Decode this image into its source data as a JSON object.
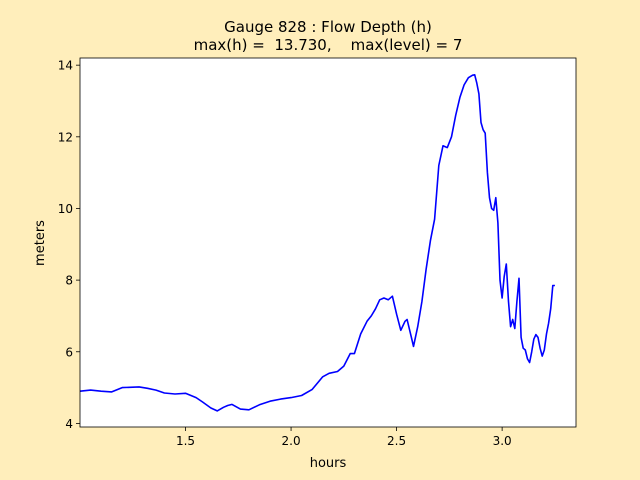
{
  "figure": {
    "background": "#ffeebb",
    "axes_background": "#ffffff",
    "line_color": "#0000ff"
  },
  "chart_data": {
    "type": "line",
    "title_line1": "Gauge 828 : Flow Depth (h)",
    "title_line2": "max(h) =  13.730,    max(level) = 7",
    "xlabel": "hours",
    "ylabel": "meters",
    "xlim": [
      1.0,
      3.35
    ],
    "ylim": [
      3.9,
      14.2
    ],
    "xticks": [
      1.5,
      2.0,
      2.5,
      3.0
    ],
    "xtick_labels": [
      "1.5",
      "2.0",
      "2.5",
      "3.0"
    ],
    "yticks": [
      4,
      6,
      8,
      10,
      12,
      14
    ],
    "ytick_labels": [
      "4",
      "6",
      "8",
      "10",
      "12",
      "14"
    ],
    "grid": false,
    "series": [
      {
        "color": "#0000ff",
        "x": [
          1.0,
          1.05,
          1.1,
          1.15,
          1.2,
          1.25,
          1.28,
          1.32,
          1.36,
          1.4,
          1.45,
          1.5,
          1.55,
          1.58,
          1.62,
          1.65,
          1.68,
          1.7,
          1.72,
          1.76,
          1.8,
          1.85,
          1.9,
          1.95,
          2.0,
          2.05,
          2.1,
          2.15,
          2.18,
          2.22,
          2.25,
          2.28,
          2.3,
          2.33,
          2.36,
          2.38,
          2.4,
          2.42,
          2.44,
          2.46,
          2.48,
          2.5,
          2.52,
          2.54,
          2.55,
          2.57,
          2.58,
          2.6,
          2.62,
          2.64,
          2.66,
          2.68,
          2.7,
          2.72,
          2.74,
          2.76,
          2.78,
          2.8,
          2.82,
          2.84,
          2.86,
          2.87,
          2.88,
          2.89,
          2.9,
          2.91,
          2.92,
          2.93,
          2.94,
          2.95,
          2.96,
          2.97,
          2.98,
          2.99,
          3.0,
          3.01,
          3.02,
          3.03,
          3.04,
          3.05,
          3.06,
          3.07,
          3.08,
          3.09,
          3.1,
          3.11,
          3.12,
          3.13,
          3.14,
          3.15,
          3.16,
          3.17,
          3.18,
          3.19,
          3.2,
          3.21,
          3.22,
          3.23,
          3.24,
          3.25
        ],
        "y": [
          4.9,
          4.93,
          4.9,
          4.88,
          5.0,
          5.01,
          5.02,
          4.98,
          4.93,
          4.85,
          4.82,
          4.84,
          4.72,
          4.6,
          4.43,
          4.35,
          4.45,
          4.5,
          4.53,
          4.4,
          4.38,
          4.52,
          4.62,
          4.68,
          4.72,
          4.78,
          4.95,
          5.3,
          5.4,
          5.45,
          5.6,
          5.95,
          5.95,
          6.5,
          6.85,
          7.0,
          7.2,
          7.45,
          7.5,
          7.45,
          7.55,
          7.05,
          6.6,
          6.85,
          6.9,
          6.4,
          6.15,
          6.7,
          7.4,
          8.3,
          9.1,
          9.7,
          11.2,
          11.75,
          11.7,
          12.0,
          12.6,
          13.1,
          13.45,
          13.65,
          13.72,
          13.73,
          13.5,
          13.2,
          12.4,
          12.2,
          12.1,
          11.0,
          10.3,
          10.0,
          9.95,
          10.3,
          9.6,
          8.0,
          7.5,
          8.1,
          8.45,
          7.4,
          6.7,
          6.9,
          6.65,
          7.4,
          8.05,
          6.4,
          6.1,
          6.05,
          5.8,
          5.7,
          6.0,
          6.35,
          6.48,
          6.4,
          6.1,
          5.88,
          6.05,
          6.5,
          6.8,
          7.2,
          7.85,
          7.85
        ]
      }
    ]
  }
}
